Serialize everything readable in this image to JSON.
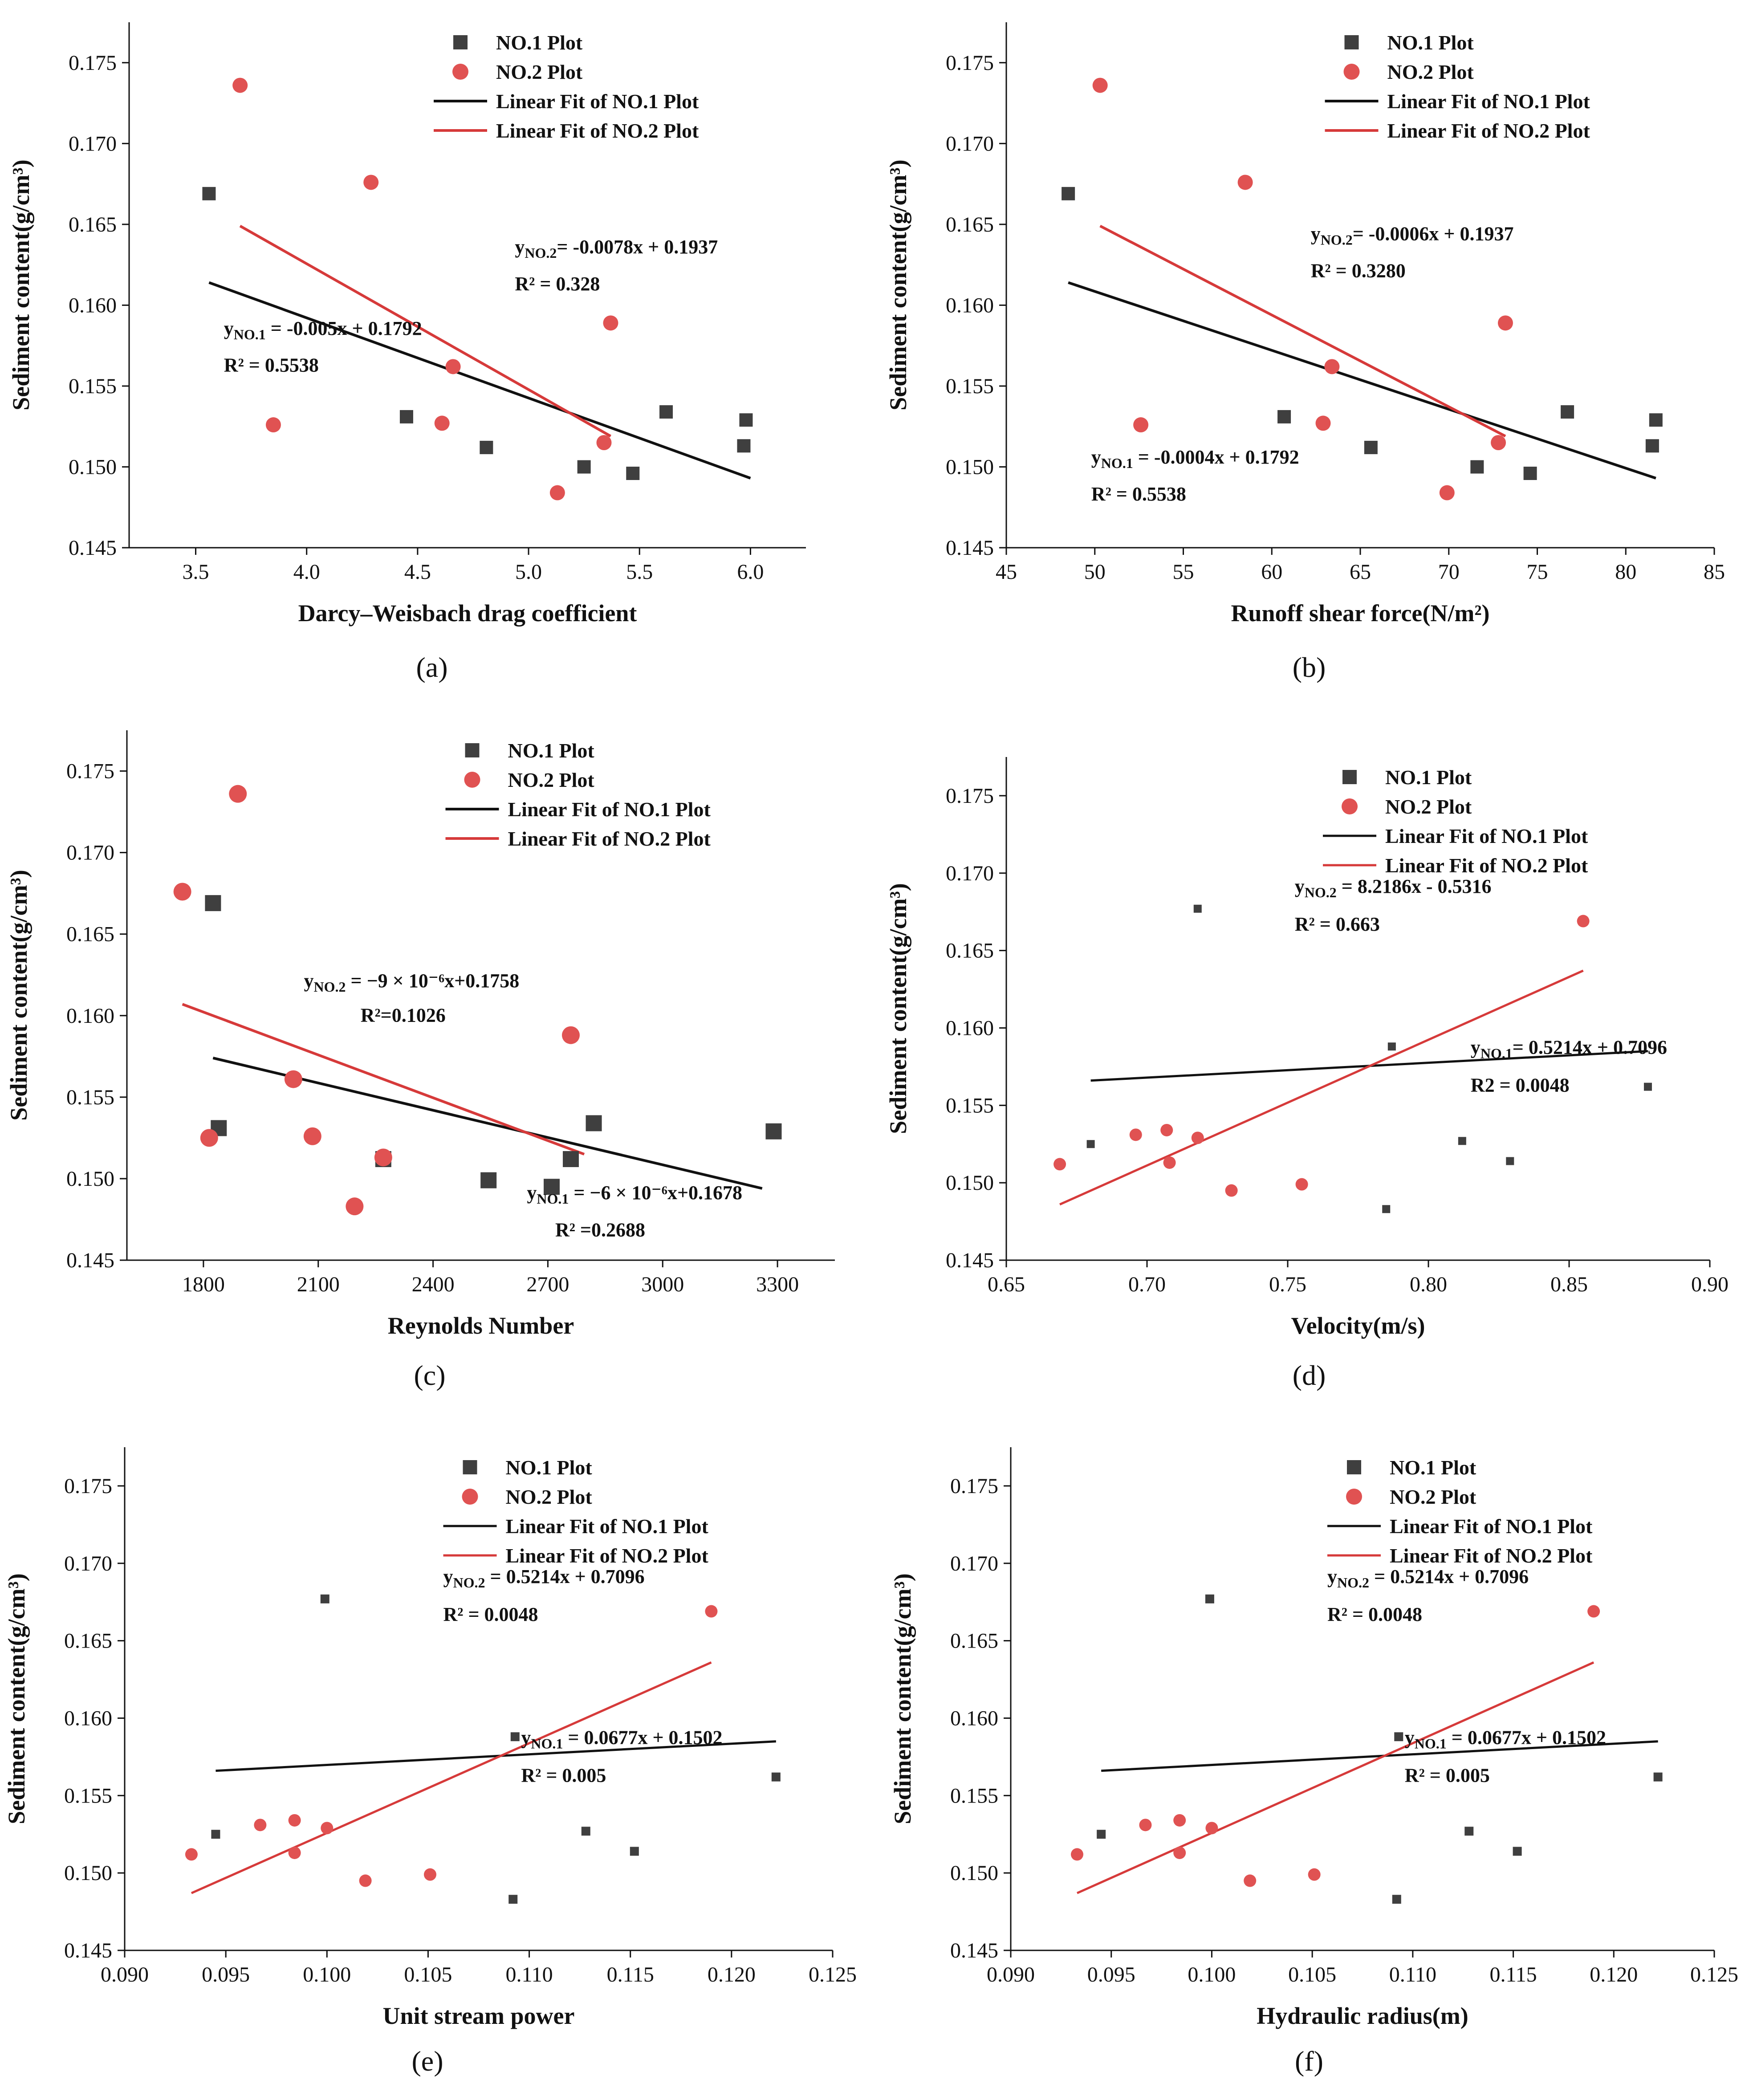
{
  "colors": {
    "no1": "#3f3f3f",
    "no2": "#e05252",
    "fit1": "#111111",
    "fit2": "#d63a3a",
    "axis": "#111111"
  },
  "chart_data": [
    {
      "id": "a",
      "type": "scatter",
      "panel_label": "(a)",
      "title": "",
      "xlabel": "Darcy–Weisbach drag coefficient",
      "ylabel": "Sediment content(g/cm³)",
      "xlim": [
        3.2,
        6.25
      ],
      "ylim": [
        0.145,
        0.1775
      ],
      "xticks": [
        3.5,
        4.0,
        4.5,
        5.0,
        5.5,
        6.0
      ],
      "xtick_labels": [
        "3.5",
        "4.0",
        "4.5",
        "5.0",
        "5.5",
        "6.0"
      ],
      "yticks": [
        0.145,
        0.15,
        0.155,
        0.16,
        0.165,
        0.17,
        0.175
      ],
      "ytick_labels": [
        "0.145",
        "0.150",
        "0.155",
        "0.160",
        "0.165",
        "0.170",
        "0.175"
      ],
      "legend": [
        "NO.1 Plot",
        "NO.2 Plot",
        "Linear Fit of NO.1 Plot",
        "Linear Fit of NO.2 Plot"
      ],
      "series": [
        {
          "name": "NO.1 Plot",
          "x": [
            3.56,
            4.45,
            4.81,
            5.25,
            5.47,
            5.62,
            5.97,
            5.98
          ],
          "y": [
            0.1669,
            0.1531,
            0.1512,
            0.15,
            0.1496,
            0.1534,
            0.1513,
            0.1529
          ]
        },
        {
          "name": "NO.2 Plot",
          "x": [
            3.7,
            3.85,
            4.29,
            4.66,
            4.61,
            5.13,
            5.34,
            5.37
          ],
          "y": [
            0.1736,
            0.1526,
            0.1676,
            0.1562,
            0.1527,
            0.1484,
            0.1515,
            0.1589
          ]
        }
      ],
      "fits": [
        {
          "name": "Linear Fit of NO.1 Plot",
          "x": [
            3.56,
            6.0
          ],
          "y": [
            0.1614,
            0.1493
          ]
        },
        {
          "name": "Linear Fit of NO.2 Plot",
          "x": [
            3.7,
            5.37
          ],
          "y": [
            0.1649,
            0.1519
          ]
        }
      ],
      "annotations": {
        "eq1": "yNO.1 = -0.005x + 0.1792",
        "r1": "R² = 0.5538",
        "eq2": "yNO.2= -0.0078x + 0.1937",
        "r2": "R² = 0.328"
      }
    },
    {
      "id": "b",
      "type": "scatter",
      "panel_label": "(b)",
      "title": "",
      "xlabel": "Runoff shear force(N/m²)",
      "ylabel": "Sediment content(g/cm³)",
      "xlim": [
        45,
        85
      ],
      "ylim": [
        0.145,
        0.1775
      ],
      "xticks": [
        45,
        50,
        55,
        60,
        65,
        70,
        75,
        80,
        85
      ],
      "xtick_labels": [
        "45",
        "50",
        "55",
        "60",
        "65",
        "70",
        "75",
        "80",
        "85"
      ],
      "yticks": [
        0.145,
        0.15,
        0.155,
        0.16,
        0.165,
        0.17,
        0.175
      ],
      "ytick_labels": [
        "0.145",
        "0.150",
        "0.155",
        "0.160",
        "0.165",
        "0.170",
        "0.175"
      ],
      "legend": [
        "NO.1 Plot",
        "NO.2 Plot",
        "Linear Fit of NO.1 Plot",
        "Linear Fit of NO.2 Plot"
      ],
      "series": [
        {
          "name": "NO.1 Plot",
          "x": [
            48.5,
            60.7,
            65.6,
            71.6,
            74.6,
            76.7,
            81.5,
            81.7
          ],
          "y": [
            0.1669,
            0.1531,
            0.1512,
            0.15,
            0.1496,
            0.1534,
            0.1513,
            0.1529
          ]
        },
        {
          "name": "NO.2 Plot",
          "x": [
            50.3,
            52.6,
            58.5,
            63.4,
            62.9,
            69.9,
            72.8,
            73.2
          ],
          "y": [
            0.1736,
            0.1526,
            0.1676,
            0.1562,
            0.1527,
            0.1484,
            0.1515,
            0.1589
          ]
        }
      ],
      "fits": [
        {
          "name": "Linear Fit of NO.1 Plot",
          "x": [
            48.5,
            81.7
          ],
          "y": [
            0.1614,
            0.1493
          ]
        },
        {
          "name": "Linear Fit of NO.2 Plot",
          "x": [
            50.3,
            73.2
          ],
          "y": [
            0.1649,
            0.1519
          ]
        }
      ],
      "annotations": {
        "eq1": "yNO.1 = -0.0004x + 0.1792",
        "r1": "R² = 0.5538",
        "eq2": "yNO.2= -0.0006x + 0.1937",
        "r2": "R² = 0.3280"
      }
    },
    {
      "id": "c",
      "type": "scatter",
      "panel_label": "(c)",
      "title": "",
      "xlabel": "Reynolds Number",
      "ylabel": "Sediment content(g/cm³)",
      "xlim": [
        1600,
        3450
      ],
      "ylim": [
        0.145,
        0.1775
      ],
      "xticks": [
        1800,
        2100,
        2400,
        2700,
        3000,
        3300
      ],
      "xtick_labels": [
        "1800",
        "2100",
        "2400",
        "2700",
        "3000",
        "3300"
      ],
      "yticks": [
        0.145,
        0.15,
        0.155,
        0.16,
        0.165,
        0.17,
        0.175
      ],
      "ytick_labels": [
        "0.145",
        "0.150",
        "0.155",
        "0.160",
        "0.165",
        "0.170",
        "0.175"
      ],
      "legend": [
        "NO.1 Plot",
        "NO.2 Plot",
        "Linear Fit of NO.1 Plot",
        "Linear Fit of NO.2 Plot"
      ],
      "series": [
        {
          "name": "NO.1 Plot",
          "x": [
            1825,
            1840,
            2270,
            2545,
            2710,
            2760,
            2820,
            3290
          ],
          "y": [
            0.1669,
            0.1531,
            0.1512,
            0.1499,
            0.1495,
            0.1512,
            0.1534,
            0.1529
          ]
        },
        {
          "name": "NO.2 Plot",
          "x": [
            1745,
            1815,
            1890,
            2035,
            2085,
            2195,
            2270,
            2760
          ],
          "y": [
            0.1676,
            0.1525,
            0.1736,
            0.1561,
            0.1526,
            0.1483,
            0.1513,
            0.1588
          ]
        }
      ],
      "fits": [
        {
          "name": "Linear Fit of NO.1 Plot",
          "x": [
            1825,
            3260
          ],
          "y": [
            0.1574,
            0.1494
          ]
        },
        {
          "name": "Linear Fit of NO.2 Plot",
          "x": [
            1745,
            2795
          ],
          "y": [
            0.1607,
            0.1515
          ]
        }
      ],
      "annotations": {
        "eq1": "yNO.1 = −6 × 10⁻⁶x+0.1678",
        "r1": "R² =0.2688",
        "eq2": "yNO.2 = −9 × 10⁻⁶x+0.1758",
        "r2": "R²=0.1026"
      }
    },
    {
      "id": "d",
      "type": "scatter",
      "panel_label": "(d)",
      "title": "",
      "xlabel": "Velocity(m/s)",
      "ylabel": "Sediment content(g/cm³)",
      "xlim": [
        0.65,
        0.9
      ],
      "ylim": [
        0.145,
        0.1775
      ],
      "xticks": [
        0.65,
        0.7,
        0.75,
        0.8,
        0.85,
        0.9
      ],
      "xtick_labels": [
        "0.65",
        "0.70",
        "0.75",
        "0.80",
        "0.85",
        "0.90"
      ],
      "yticks": [
        0.145,
        0.15,
        0.155,
        0.16,
        0.165,
        0.17,
        0.175
      ],
      "ytick_labels": [
        "0.145",
        "0.150",
        "0.155",
        "0.160",
        "0.165",
        "0.170",
        "0.175"
      ],
      "legend": [
        "NO.1 Plot",
        "NO.2 Plot",
        "Linear Fit of NO.1 Plot",
        "Linear Fit of NO.2 Plot"
      ],
      "series": [
        {
          "name": "NO.1 Plot",
          "x": [
            0.68,
            0.718,
            0.785,
            0.787,
            0.812,
            0.829,
            0.878
          ],
          "y": [
            0.1525,
            0.1677,
            0.1483,
            0.1588,
            0.1527,
            0.1514,
            0.1562
          ]
        },
        {
          "name": "NO.2 Plot",
          "x": [
            0.669,
            0.696,
            0.707,
            0.708,
            0.718,
            0.73,
            0.755,
            0.855
          ],
          "y": [
            0.1512,
            0.1531,
            0.1534,
            0.1513,
            0.1529,
            0.1495,
            0.1499,
            0.1669
          ]
        }
      ],
      "fits": [
        {
          "name": "Linear Fit of NO.1 Plot",
          "x": [
            0.68,
            0.878
          ],
          "y": [
            0.1566,
            0.1585
          ]
        },
        {
          "name": "Linear Fit of NO.2 Plot",
          "x": [
            0.669,
            0.855
          ],
          "y": [
            0.1486,
            0.1637
          ]
        }
      ],
      "annotations": {
        "eq1": "yNO.1= 0.5214x + 0.7096",
        "r1": "R2 = 0.0048",
        "eq2": "yNO.2 = 8.2186x - 0.5316",
        "r2": "R² = 0.663"
      }
    },
    {
      "id": "e",
      "type": "scatter",
      "panel_label": "(e)",
      "title": "",
      "xlabel": "Unit stream power",
      "ylabel": "Sediment content(g/cm³)",
      "xlim": [
        0.09,
        0.125
      ],
      "ylim": [
        0.145,
        0.1775
      ],
      "xticks": [
        0.09,
        0.095,
        0.1,
        0.105,
        0.11,
        0.115,
        0.12,
        0.125
      ],
      "xtick_labels": [
        "0.090",
        "0.095",
        "0.100",
        "0.105",
        "0.110",
        "0.115",
        "0.120",
        "0.125"
      ],
      "yticks": [
        0.145,
        0.15,
        0.155,
        0.16,
        0.165,
        0.17,
        0.175
      ],
      "ytick_labels": [
        "0.145",
        "0.150",
        "0.155",
        "0.160",
        "0.165",
        "0.170",
        "0.175"
      ],
      "legend": [
        "NO.1 Plot",
        "NO.2 Plot",
        "Linear Fit of NO.1 Plot",
        "Linear Fit of NO.2 Plot"
      ],
      "series": [
        {
          "name": "NO.1 Plot",
          "x": [
            0.0945,
            0.0999,
            0.1092,
            0.1093,
            0.1128,
            0.1152,
            0.1222
          ],
          "y": [
            0.1525,
            0.1677,
            0.1483,
            0.1588,
            0.1527,
            0.1514,
            0.1562
          ]
        },
        {
          "name": "NO.2 Plot",
          "x": [
            0.0933,
            0.0967,
            0.0984,
            0.0984,
            0.1,
            0.1019,
            0.1051,
            0.119
          ],
          "y": [
            0.1512,
            0.1531,
            0.1534,
            0.1513,
            0.1529,
            0.1495,
            0.1499,
            0.1669
          ]
        }
      ],
      "fits": [
        {
          "name": "Linear Fit of NO.1 Plot",
          "x": [
            0.0945,
            0.1222
          ],
          "y": [
            0.1566,
            0.1585
          ]
        },
        {
          "name": "Linear Fit of NO.2 Plot",
          "x": [
            0.0933,
            0.119
          ],
          "y": [
            0.1487,
            0.1636
          ]
        }
      ],
      "annotations": {
        "eq1": "yNO.1 = 0.0677x + 0.1502",
        "r1": "R² = 0.005",
        "eq2": "yNO.2 = 0.5214x + 0.7096",
        "r2": "R² = 0.0048"
      }
    },
    {
      "id": "f",
      "type": "scatter",
      "panel_label": "(f)",
      "title": "",
      "xlabel": "Hydraulic radius(m)",
      "ylabel": "Sediment content(g/cm³)",
      "xlim": [
        0.09,
        0.125
      ],
      "ylim": [
        0.145,
        0.1775
      ],
      "xticks": [
        0.09,
        0.095,
        0.1,
        0.105,
        0.11,
        0.115,
        0.12,
        0.125
      ],
      "xtick_labels": [
        "0.090",
        "0.095",
        "0.100",
        "0.105",
        "0.110",
        "0.115",
        "0.120",
        "0.125"
      ],
      "yticks": [
        0.145,
        0.15,
        0.155,
        0.16,
        0.165,
        0.17,
        0.175
      ],
      "ytick_labels": [
        "0.145",
        "0.150",
        "0.155",
        "0.160",
        "0.165",
        "0.170",
        "0.175"
      ],
      "legend": [
        "NO.1 Plot",
        "NO.2 Plot",
        "Linear Fit of NO.1 Plot",
        "Linear Fit of NO.2 Plot"
      ],
      "series": [
        {
          "name": "NO.1 Plot",
          "x": [
            0.0945,
            0.0999,
            0.1092,
            0.1093,
            0.1128,
            0.1152,
            0.1222
          ],
          "y": [
            0.1525,
            0.1677,
            0.1483,
            0.1588,
            0.1527,
            0.1514,
            0.1562
          ]
        },
        {
          "name": "NO.2 Plot",
          "x": [
            0.0933,
            0.0967,
            0.0984,
            0.0984,
            0.1,
            0.1019,
            0.1051,
            0.119
          ],
          "y": [
            0.1512,
            0.1531,
            0.1534,
            0.1513,
            0.1529,
            0.1495,
            0.1499,
            0.1669
          ]
        }
      ],
      "fits": [
        {
          "name": "Linear Fit of NO.1 Plot",
          "x": [
            0.0945,
            0.1222
          ],
          "y": [
            0.1566,
            0.1585
          ]
        },
        {
          "name": "Linear Fit of NO.2 Plot",
          "x": [
            0.0933,
            0.119
          ],
          "y": [
            0.1487,
            0.1636
          ]
        }
      ],
      "annotations": {
        "eq1": "yNO.1 = 0.0677x + 0.1502",
        "r1": "R² = 0.005",
        "eq2": "yNO.2 = 0.5214x + 0.7096",
        "r2": "R² = 0.0048"
      }
    }
  ]
}
